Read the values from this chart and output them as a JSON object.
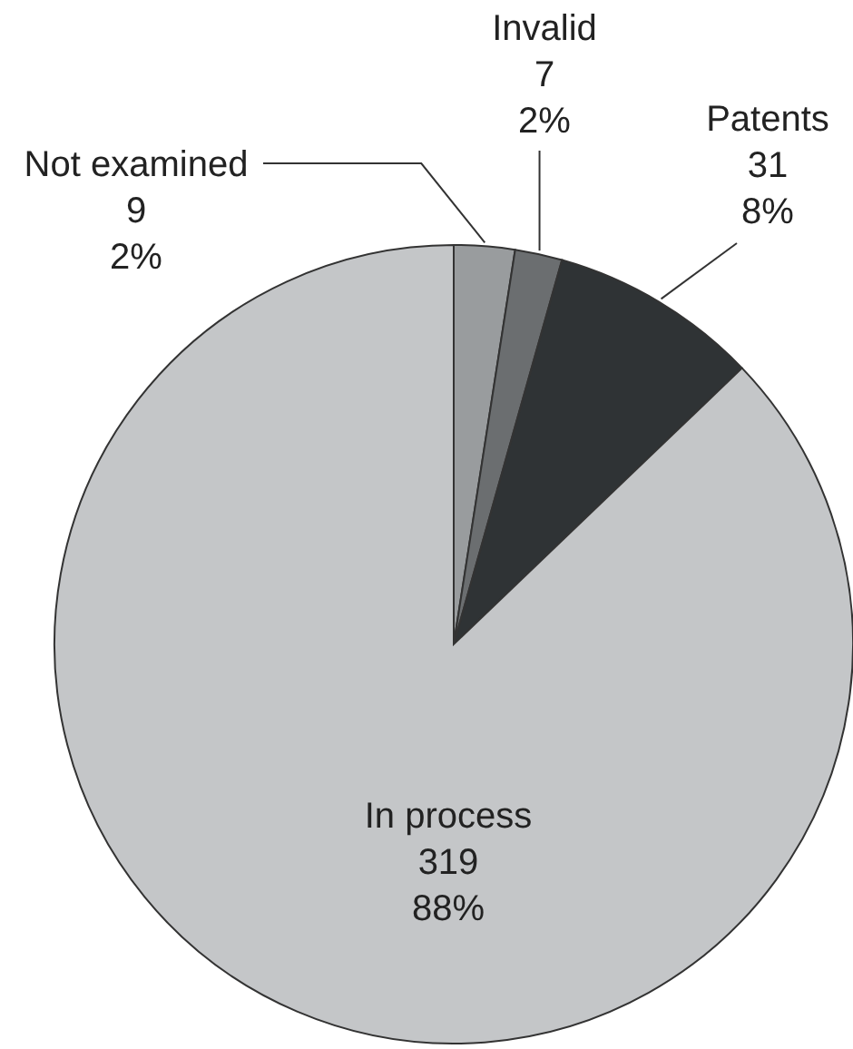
{
  "chart_data": {
    "type": "pie",
    "categories": [
      "Not examined",
      "Invalid",
      "Patents",
      "In process"
    ],
    "values": [
      9,
      7,
      31,
      319
    ],
    "colors": [
      "#999c9e",
      "#6b6e70",
      "#2f3335",
      "#c4c6c8"
    ],
    "value_labels": [
      "9\n2%",
      "7\n2%",
      "31\n8%",
      "319\n88%"
    ]
  }
}
